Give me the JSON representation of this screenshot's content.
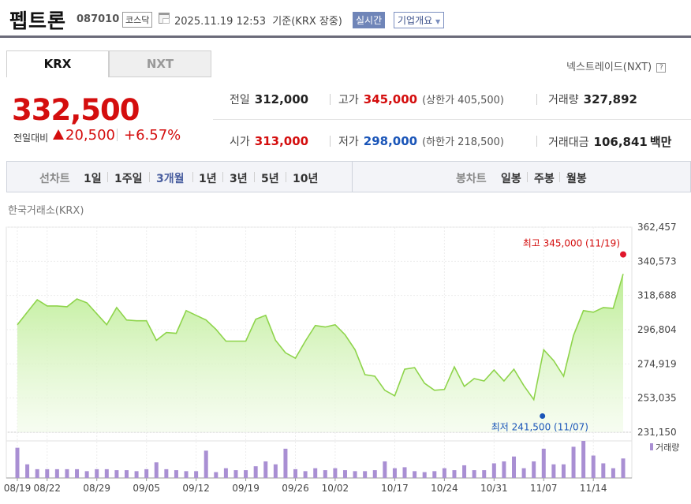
{
  "header": {
    "stock_name": "펩트론",
    "stock_code": "087010",
    "market": "코스닥",
    "datetime": "2025.11.19 12:53",
    "basis": "기준(KRX 장중)",
    "realtime_badge": "실시간",
    "company_overview": "기업개요"
  },
  "tabs": [
    {
      "label": "KRX",
      "active": true
    },
    {
      "label": "NXT",
      "active": false
    }
  ],
  "nexttrade_link": "넥스트레이드(NXT)",
  "price": {
    "current": "332,500",
    "change_label": "전일대비",
    "change": "20,500",
    "change_pct": "+6.57%",
    "up_color": "#d40e0e"
  },
  "summary": {
    "prev_close": {
      "label": "전일",
      "value": "312,000"
    },
    "open": {
      "label": "시가",
      "value": "313,000"
    },
    "high": {
      "label": "고가",
      "value": "345,000",
      "limit_label": "(상한가 405,500)"
    },
    "low": {
      "label": "저가",
      "value": "298,000",
      "limit_label": "(하한가 218,500)"
    },
    "volume": {
      "label": "거래량",
      "value": "327,892"
    },
    "amount": {
      "label": "거래대금",
      "value": "106,841",
      "unit": "백만"
    }
  },
  "toolbar": {
    "line_label": "선차트",
    "periods": [
      "1일",
      "1주일",
      "3개월",
      "1년",
      "3년",
      "5년",
      "10년"
    ],
    "active_period": "3개월",
    "candle_label": "봉차트",
    "candles": [
      "일봉",
      "주봉",
      "월봉"
    ]
  },
  "exchange_label": "한국거래소(KRX)",
  "chart_data": {
    "type": "line",
    "y_ticks": [
      "362,457",
      "340,573",
      "318,688",
      "296,804",
      "274,919",
      "253,035",
      "231,150"
    ],
    "ylim": [
      231150,
      362457
    ],
    "x_ticks": [
      "08/19",
      "08/22",
      "08/29",
      "09/05",
      "09/12",
      "09/19",
      "09/26",
      "10/02",
      "10/17",
      "10/24",
      "10/31",
      "11/07",
      "11/14"
    ],
    "x_tick_index": [
      0,
      3,
      8,
      13,
      18,
      23,
      28,
      32,
      38,
      43,
      48,
      53,
      58
    ],
    "close": [
      300000,
      308000,
      316000,
      312000,
      312000,
      311500,
      316500,
      314000,
      307000,
      300000,
      311000,
      303000,
      302500,
      302500,
      290000,
      295000,
      294500,
      309000,
      306000,
      303000,
      297000,
      289500,
      289500,
      289500,
      303500,
      306000,
      290000,
      282000,
      278500,
      289500,
      299500,
      298500,
      300000,
      293500,
      284000,
      268000,
      267000,
      258000,
      254500,
      271500,
      272500,
      262500,
      258000,
      258500,
      273000,
      260500,
      265500,
      264000,
      271000,
      264000,
      271500,
      261000,
      252000,
      284000,
      277000,
      267000,
      293000,
      309000,
      308000,
      311000,
      310500,
      332500
    ],
    "volume": [
      62,
      28,
      18,
      18,
      18,
      18,
      18,
      14,
      18,
      18,
      16,
      16,
      14,
      18,
      32,
      18,
      16,
      14,
      14,
      56,
      12,
      20,
      16,
      16,
      24,
      34,
      28,
      60,
      18,
      14,
      20,
      16,
      20,
      16,
      14,
      14,
      16,
      34,
      20,
      22,
      14,
      12,
      14,
      20,
      16,
      26,
      16,
      16,
      30,
      34,
      44,
      20,
      34,
      60,
      28,
      28,
      64,
      76,
      46,
      30,
      20,
      40
    ],
    "high": {
      "label": "최고",
      "value": 345000,
      "text": "345,000 (11/19)",
      "index": 61
    },
    "low": {
      "label": "최저",
      "value": 241500,
      "text": "241,500 (11/07)",
      "index": 52
    },
    "volume_legend": "거래량",
    "line_color": "#8ed44b",
    "volume_color": "#a98fd3",
    "grid": true
  }
}
